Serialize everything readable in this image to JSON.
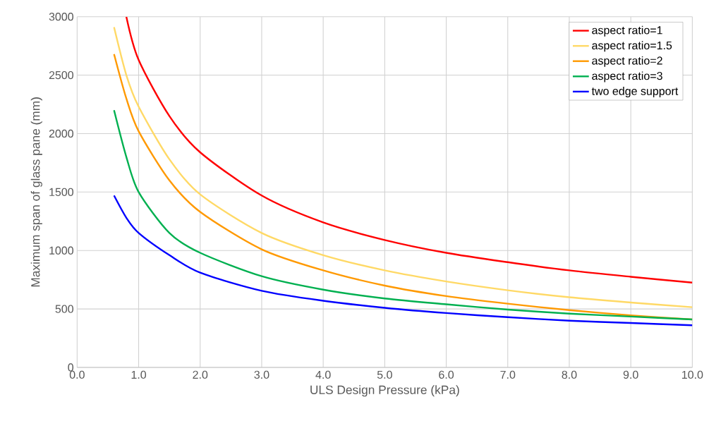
{
  "chart_data": {
    "type": "line",
    "xlabel": "ULS Design Pressure (kPa)",
    "ylabel": "Maximum span of glass pane (mm)",
    "xlim": [
      0,
      10
    ],
    "ylim": [
      0,
      3000
    ],
    "xticks": [
      {
        "value": 0,
        "label": "0.0"
      },
      {
        "value": 1,
        "label": "1.0"
      },
      {
        "value": 2,
        "label": "2.0"
      },
      {
        "value": 3,
        "label": "3.0"
      },
      {
        "value": 4,
        "label": "4.0"
      },
      {
        "value": 5,
        "label": "5.0"
      },
      {
        "value": 6,
        "label": "6.0"
      },
      {
        "value": 7,
        "label": "7.0"
      },
      {
        "value": 8,
        "label": "8.0"
      },
      {
        "value": 9,
        "label": "9.0"
      },
      {
        "value": 10,
        "label": "10.0"
      }
    ],
    "yticks": [
      0,
      500,
      1000,
      1500,
      2000,
      2500,
      3000
    ],
    "grid": true,
    "legend": "top right",
    "marker": "none",
    "line_style": "solid",
    "series": [
      {
        "name": "aspect ratio=1",
        "color": "#ff0000",
        "x": [
          0.8,
          1,
          1.5,
          2,
          3,
          4,
          5,
          6,
          7,
          8,
          9,
          10
        ],
        "values": [
          3000,
          2630,
          2150,
          1840,
          1470,
          1240,
          1090,
          980,
          900,
          830,
          775,
          725
        ]
      },
      {
        "name": "aspect ratio=1.5",
        "color": "#ffd966",
        "x": [
          0.6,
          0.8,
          1,
          1.5,
          2,
          3,
          4,
          5,
          6,
          7,
          8,
          9,
          10
        ],
        "values": [
          2910,
          2500,
          2230,
          1780,
          1480,
          1150,
          960,
          830,
          735,
          660,
          600,
          555,
          515
        ]
      },
      {
        "name": "aspect ratio=2",
        "color": "#ff9900",
        "x": [
          0.6,
          0.8,
          1,
          1.5,
          2,
          3,
          4,
          5,
          6,
          7,
          8,
          9,
          10
        ],
        "values": [
          2680,
          2300,
          2020,
          1600,
          1330,
          1010,
          830,
          700,
          610,
          545,
          490,
          445,
          410
        ]
      },
      {
        "name": "aspect ratio=3",
        "color": "#00b050",
        "x": [
          0.6,
          0.8,
          1,
          1.5,
          2,
          3,
          4,
          5,
          6,
          7,
          8,
          9,
          10
        ],
        "values": [
          2200,
          1800,
          1500,
          1150,
          980,
          780,
          665,
          590,
          540,
          495,
          460,
          435,
          410
        ]
      },
      {
        "name": "two edge support",
        "color": "#0000ff",
        "x": [
          0.6,
          0.8,
          1,
          1.5,
          2,
          3,
          4,
          5,
          6,
          7,
          8,
          9,
          10
        ],
        "values": [
          1470,
          1280,
          1150,
          960,
          810,
          655,
          570,
          510,
          465,
          430,
          400,
          380,
          360
        ]
      }
    ]
  }
}
